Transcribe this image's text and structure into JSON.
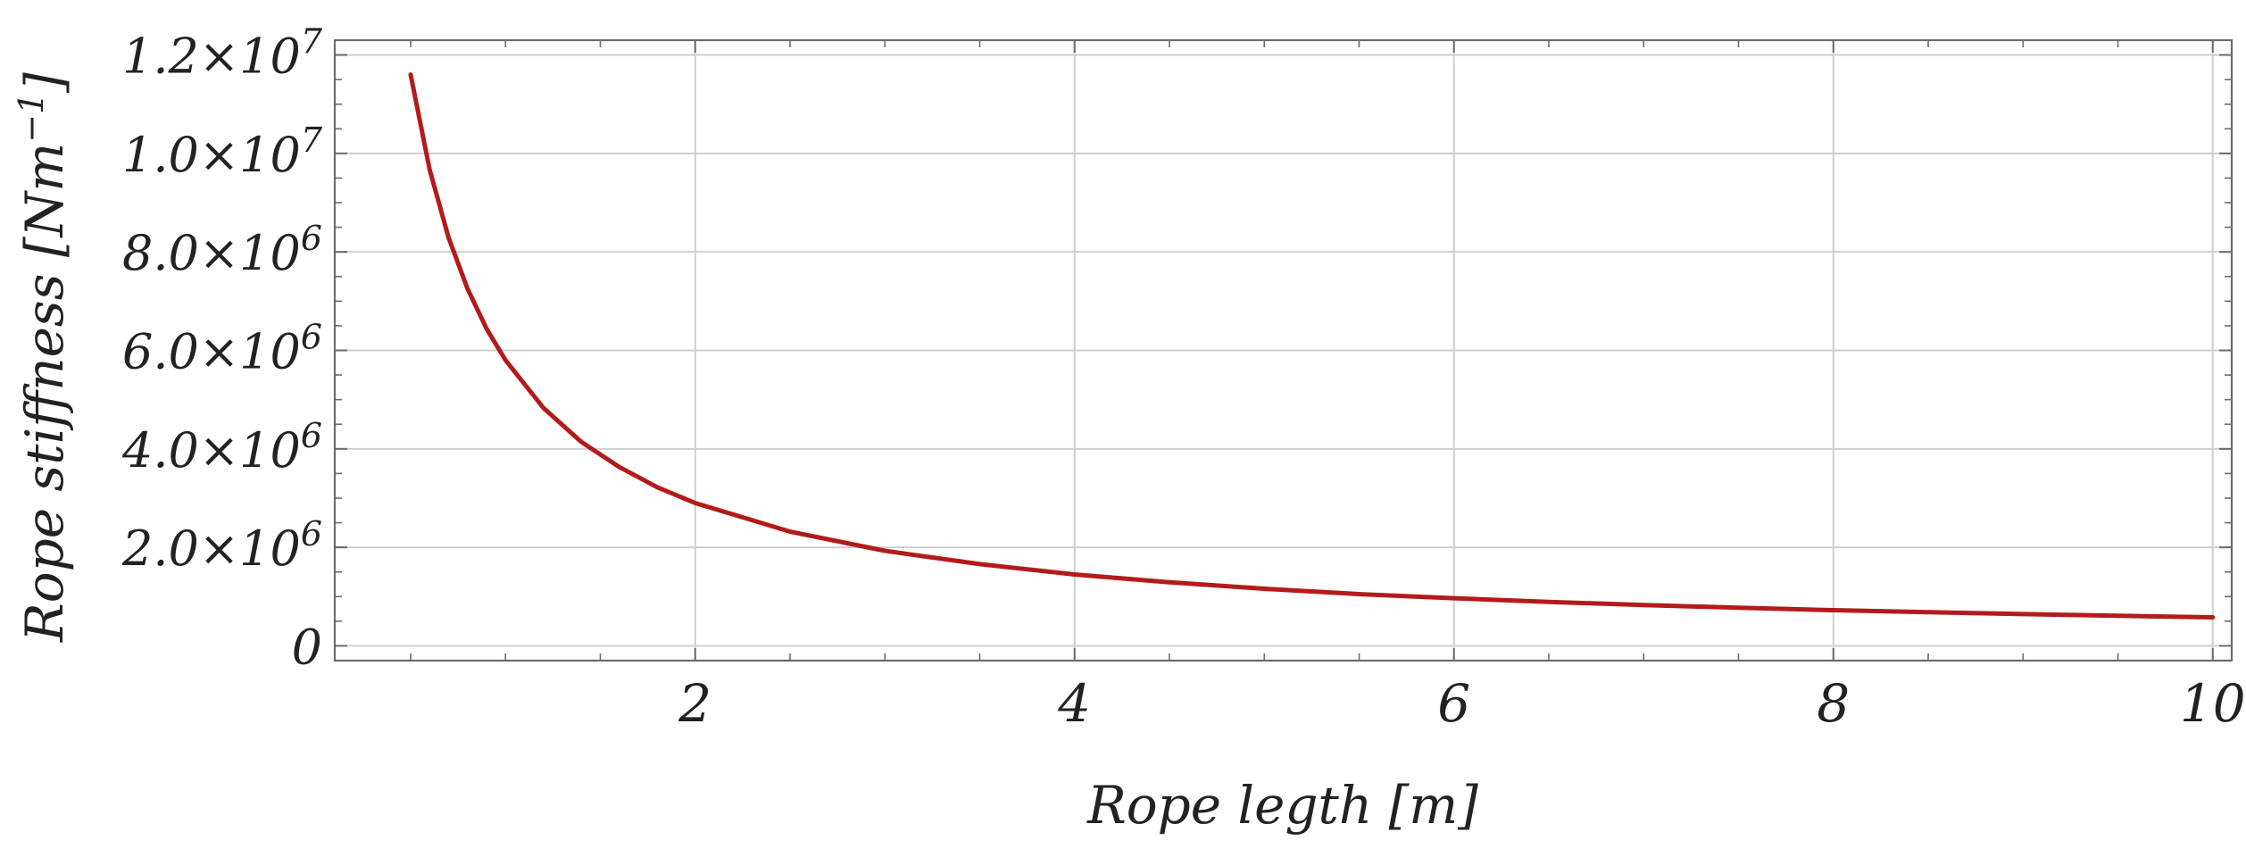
{
  "chart_data": {
    "type": "line",
    "title": "",
    "xlabel": "Rope legth [m]",
    "ylabel_main": "Rope stiffness [Nm",
    "ylabel_sup": "−1",
    "ylabel_tail": "]",
    "xlim": [
      0.1,
      10.1
    ],
    "ylim": [
      -300000,
      12300000
    ],
    "x_ticks": [
      {
        "value": 2,
        "label": "2"
      },
      {
        "value": 4,
        "label": "4"
      },
      {
        "value": 6,
        "label": "6"
      },
      {
        "value": 8,
        "label": "8"
      },
      {
        "value": 10,
        "label": "10"
      }
    ],
    "y_ticks": [
      {
        "value": 0,
        "mantissa": "0",
        "exponent": ""
      },
      {
        "value": 2000000,
        "mantissa": "2.0",
        "exponent": "6"
      },
      {
        "value": 4000000,
        "mantissa": "4.0",
        "exponent": "6"
      },
      {
        "value": 6000000,
        "mantissa": "6.0",
        "exponent": "6"
      },
      {
        "value": 8000000,
        "mantissa": "8.0",
        "exponent": "6"
      },
      {
        "value": 10000000,
        "mantissa": "1.0",
        "exponent": "7"
      },
      {
        "value": 12000000,
        "mantissa": "1.2",
        "exponent": "7"
      }
    ],
    "grid": true,
    "series": [
      {
        "color": "#b31b1b",
        "x": [
          0.5,
          0.6,
          0.7,
          0.8,
          0.9,
          1.0,
          1.2,
          1.4,
          1.6,
          1.8,
          2.0,
          2.5,
          3.0,
          3.5,
          4.0,
          4.5,
          5.0,
          5.5,
          6.0,
          6.5,
          7.0,
          7.5,
          8.0,
          8.5,
          9.0,
          9.5,
          10.0
        ],
        "y": [
          11600000,
          9670000,
          8290000,
          7250000,
          6440000,
          5800000,
          4830000,
          4140000,
          3630000,
          3220000,
          2900000,
          2320000,
          1930000,
          1660000,
          1450000,
          1290000,
          1160000,
          1050000,
          967000,
          892000,
          829000,
          773000,
          725000,
          682000,
          644000,
          611000,
          580000
        ]
      }
    ]
  }
}
